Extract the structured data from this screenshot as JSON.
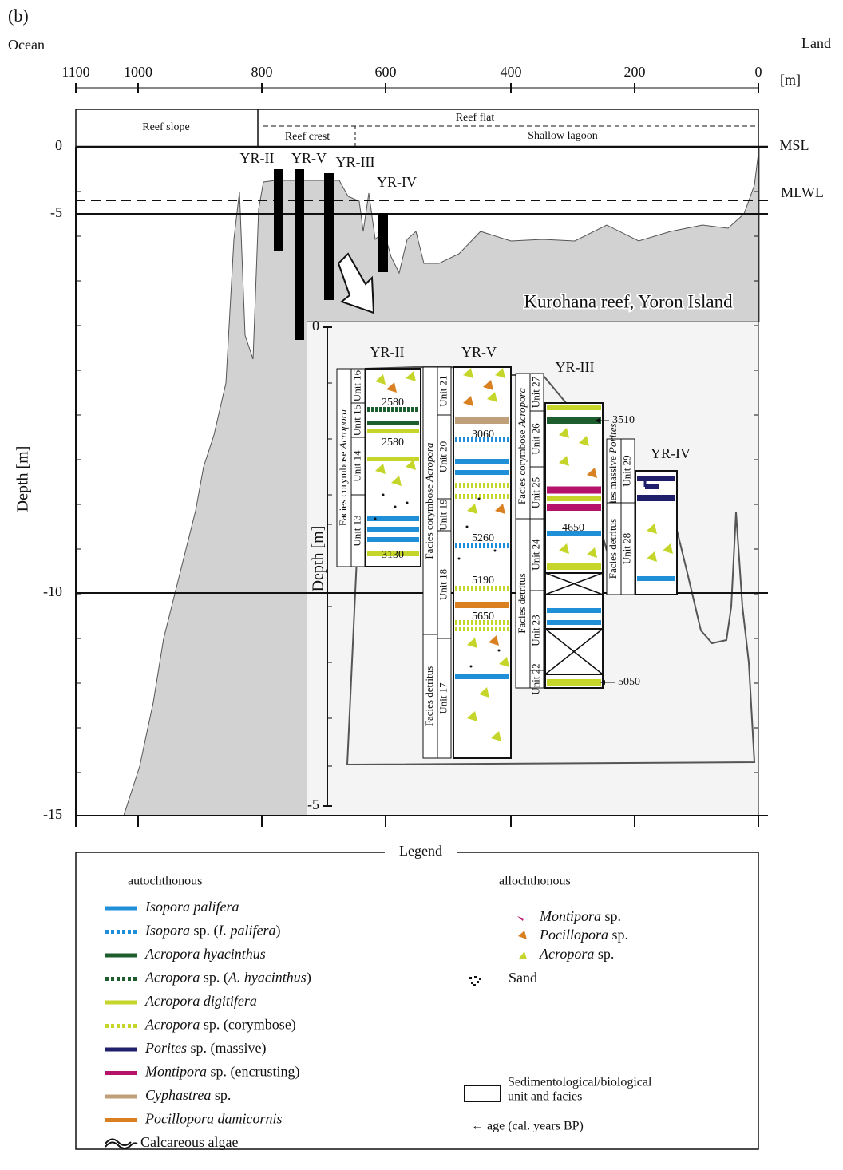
{
  "panel_label": "(b)",
  "ocean": "Ocean",
  "land": "Land",
  "x_axis": {
    "unit": "[m]",
    "ticks": [
      "1100",
      "1000",
      "800",
      "600",
      "400",
      "200",
      "0"
    ]
  },
  "y_axis": {
    "label": "Depth [m]",
    "ticks": [
      "0",
      "-5",
      "-10",
      "-15"
    ]
  },
  "zones": {
    "reef_slope": "Reef slope",
    "reef_flat": "Reef flat",
    "reef_crest": "Reef crest",
    "shallow_lagoon": "Shallow lagoon"
  },
  "levels": {
    "msl": "MSL",
    "mlwl": "MLWL"
  },
  "cores": [
    "YR-II",
    "YR-V",
    "YR-III",
    "YR-IV"
  ],
  "location": "Kurohana reef, Yoron Island",
  "inset": {
    "depth_label": "Depth [m]",
    "ticks": [
      "0",
      "-5"
    ],
    "columns": [
      {
        "name": "YR-II",
        "facies": [
          [
            {
              "text": "Facies corymbose ",
              "italic": false
            },
            {
              "text": "Acropora",
              "italic": true
            }
          ]
        ],
        "units": [
          "Unit 16",
          "Unit 15",
          "Unit 14",
          "Unit 13"
        ],
        "ages": [
          "2580",
          "2580",
          "3130"
        ]
      },
      {
        "name": "YR-V",
        "facies": [
          [
            {
              "text": "Facies corymbose ",
              "italic": false
            },
            {
              "text": "Acropora",
              "italic": true
            }
          ],
          [
            {
              "text": "Facies detritus",
              "italic": false
            }
          ]
        ],
        "units": [
          "Unit 21",
          "Unit 20",
          "Unit 19",
          "Unit 18",
          "Unit 17"
        ],
        "ages": [
          "3060",
          "5260",
          "5190",
          "5650"
        ]
      },
      {
        "name": "YR-III",
        "facies": [
          [
            {
              "text": "Facies corymbose ",
              "italic": false
            },
            {
              "text": "Acropora",
              "italic": true
            }
          ],
          [
            {
              "text": "Facies detritus",
              "italic": false
            }
          ]
        ],
        "units": [
          "Unit 27",
          "Unit 26",
          "Unit 25",
          "Unit 24",
          "Unit 23",
          "Unit 22"
        ],
        "ages": [
          "3510",
          "4650",
          "5050"
        ]
      },
      {
        "name": "YR-IV",
        "facies": [
          [
            {
              "text": "Facies massive ",
              "italic": false
            },
            {
              "text": "Porites",
              "italic": true
            }
          ],
          [
            {
              "text": "Facies detritus",
              "italic": false
            }
          ]
        ],
        "units": [
          "Unit 29",
          "Unit 28"
        ],
        "ages": []
      }
    ]
  },
  "legend": {
    "title": "Legend",
    "autochthonous": "autochthonous",
    "allochthonous": "allochthonous",
    "auto_items": [
      [
        {
          "text": "Isopora palifera",
          "italic": true
        }
      ],
      [
        {
          "text": "Isopora",
          "italic": true
        },
        {
          "text": " sp. (",
          "italic": false
        },
        {
          "text": "I. palifera",
          "italic": true
        },
        {
          "text": ")",
          "italic": false
        }
      ],
      [
        {
          "text": "Acropora hyacinthus",
          "italic": true
        }
      ],
      [
        {
          "text": "Acropora",
          "italic": true
        },
        {
          "text": " sp. (",
          "italic": false
        },
        {
          "text": "A. hyacinthus",
          "italic": true
        },
        {
          "text": ")",
          "italic": false
        }
      ],
      [
        {
          "text": "Acropora digitifera",
          "italic": true
        }
      ],
      [
        {
          "text": "Acropora",
          "italic": true
        },
        {
          "text": " sp.  (corymbose)",
          "italic": false
        }
      ],
      [
        {
          "text": "Porites",
          "italic": true
        },
        {
          "text": " sp. (massive)",
          "italic": false
        }
      ],
      [
        {
          "text": "Montipora",
          "italic": true
        },
        {
          "text": " sp. (encrusting)",
          "italic": false
        }
      ],
      [
        {
          "text": "Cyphastrea",
          "italic": true
        },
        {
          "text": " sp.",
          "italic": false
        }
      ],
      [
        {
          "text": "Pocillopora damicornis",
          "italic": true
        }
      ],
      [
        {
          "text": "Calcareous algae",
          "italic": false
        }
      ]
    ],
    "allo_items": [
      [
        {
          "text": "Montipora",
          "italic": true
        },
        {
          "text": " sp.",
          "italic": false
        }
      ],
      [
        {
          "text": "Pocillopora",
          "italic": true
        },
        {
          "text": " sp.",
          "italic": false
        }
      ],
      [
        {
          "text": "Acropora",
          "italic": true
        },
        {
          "text": " sp.",
          "italic": false
        }
      ],
      [
        {
          "text": "Sand",
          "italic": false
        }
      ]
    ],
    "unit_facies": [
      "Sedimentological/biological",
      "unit and facies"
    ],
    "age": "← age (cal. years BP)"
  }
}
